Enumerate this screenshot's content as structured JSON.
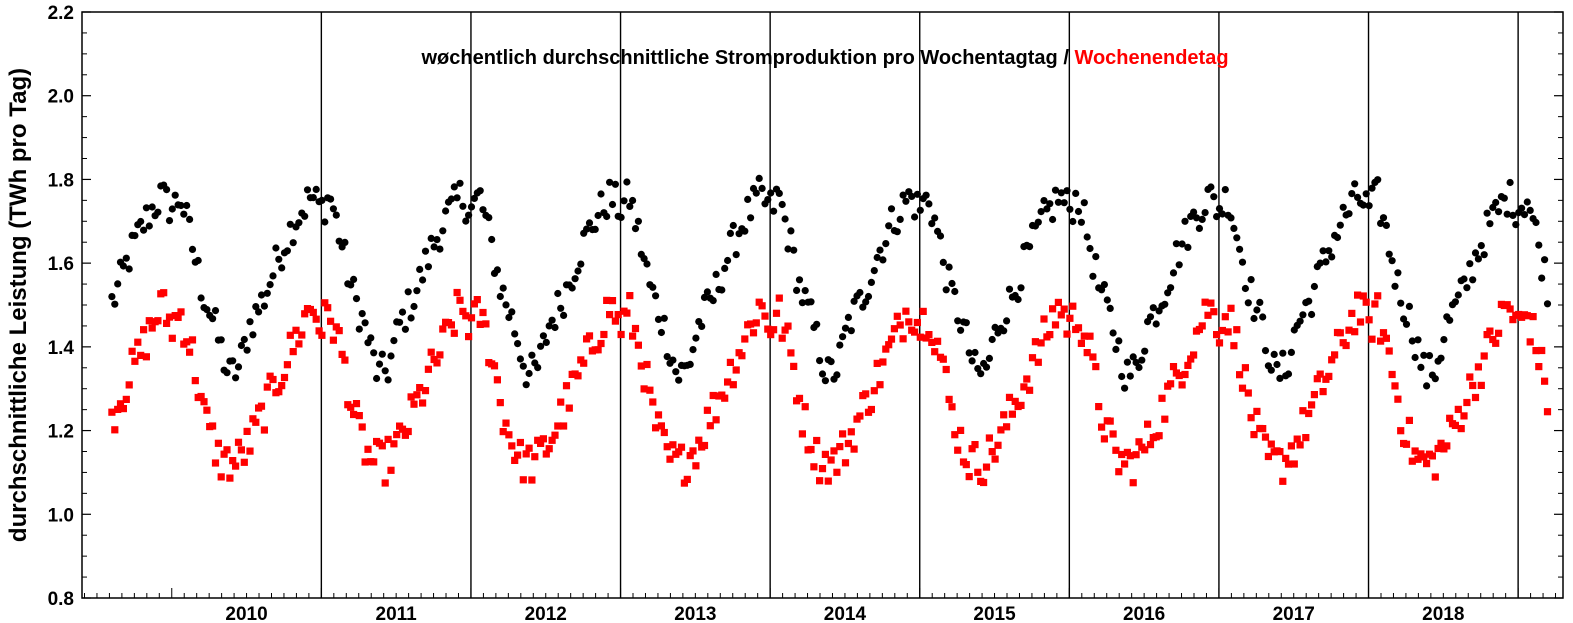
{
  "chart_data": {
    "type": "scatter",
    "title": {
      "part1": "wøchentlich durchschnittliche Stromproduktion pro Wochentagtag",
      "separator": " / ",
      "part2": "Wochenendetag"
    },
    "xlabel": "",
    "ylabel": "durchschnittliche Leistung (TWh pro Tag)",
    "ylim": [
      0.8,
      2.2
    ],
    "yticks": [
      "0.8",
      "1.0",
      "1.2",
      "1.4",
      "1.6",
      "1.8",
      "2.0",
      "2.2"
    ],
    "year_labels": [
      "2010",
      "2011",
      "2012",
      "2013",
      "2014",
      "2015",
      "2016",
      "2017",
      "2018"
    ],
    "x_range_years": [
      2009.4,
      2019.3
    ],
    "year_boundaries": [
      2011.0,
      2012.0,
      2013.0,
      2014.0,
      2015.0,
      2016.0,
      2017.0,
      2018.0,
      2019.0
    ],
    "grid": false,
    "legend": "none (colors explained in title)",
    "series": [
      {
        "name": "Wochentagtag",
        "color": "#000000",
        "marker": "circle",
        "anchors": [
          [
            0.0,
            1.73
          ],
          [
            0.06,
            1.76
          ],
          [
            0.12,
            1.67
          ],
          [
            0.2,
            1.54
          ],
          [
            0.28,
            1.46
          ],
          [
            0.38,
            1.33
          ],
          [
            0.45,
            1.35
          ],
          [
            0.52,
            1.45
          ],
          [
            0.62,
            1.52
          ],
          [
            0.72,
            1.62
          ],
          [
            0.82,
            1.7
          ],
          [
            0.93,
            1.76
          ],
          [
            1.0,
            1.73
          ]
        ],
        "jitter": 0.045,
        "points_per_year": 52
      },
      {
        "name": "Wochenendetag",
        "color": "#ff0000",
        "marker": "square",
        "anchors": [
          [
            0.0,
            1.45
          ],
          [
            0.06,
            1.48
          ],
          [
            0.14,
            1.38
          ],
          [
            0.22,
            1.23
          ],
          [
            0.32,
            1.13
          ],
          [
            0.42,
            1.12
          ],
          [
            0.52,
            1.17
          ],
          [
            0.62,
            1.25
          ],
          [
            0.72,
            1.33
          ],
          [
            0.82,
            1.41
          ],
          [
            0.93,
            1.5
          ],
          [
            1.0,
            1.45
          ]
        ],
        "jitter": 0.05,
        "points_per_year": 52
      }
    ]
  },
  "colors": {
    "weekday": "#000000",
    "weekend": "#ff0000",
    "axis": "#000000",
    "background": "#ffffff"
  }
}
